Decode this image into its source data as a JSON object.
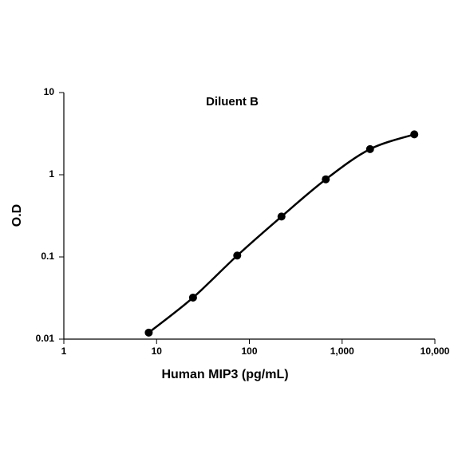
{
  "chart_data": {
    "type": "line",
    "title": "Diluent B",
    "x_label": "Human MIP3 (pg/mL)",
    "y_label": "O.D",
    "x": [
      8.23,
      24.7,
      74,
      222,
      667,
      2000,
      6000
    ],
    "values": [
      0.012,
      0.032,
      0.104,
      0.31,
      0.88,
      2.05,
      3.1
    ],
    "color": "#000000",
    "x_log": true,
    "y_log": true,
    "xlim": [
      1,
      10000
    ],
    "xticks": [
      1,
      10,
      100,
      {
        "value": 1000,
        "label": "1,000"
      },
      {
        "value": 10000,
        "label": "10,000"
      }
    ],
    "ylim": [
      0.01,
      10
    ],
    "yticks": [
      0.01,
      0.1,
      1,
      10
    ],
    "grid": false
  }
}
